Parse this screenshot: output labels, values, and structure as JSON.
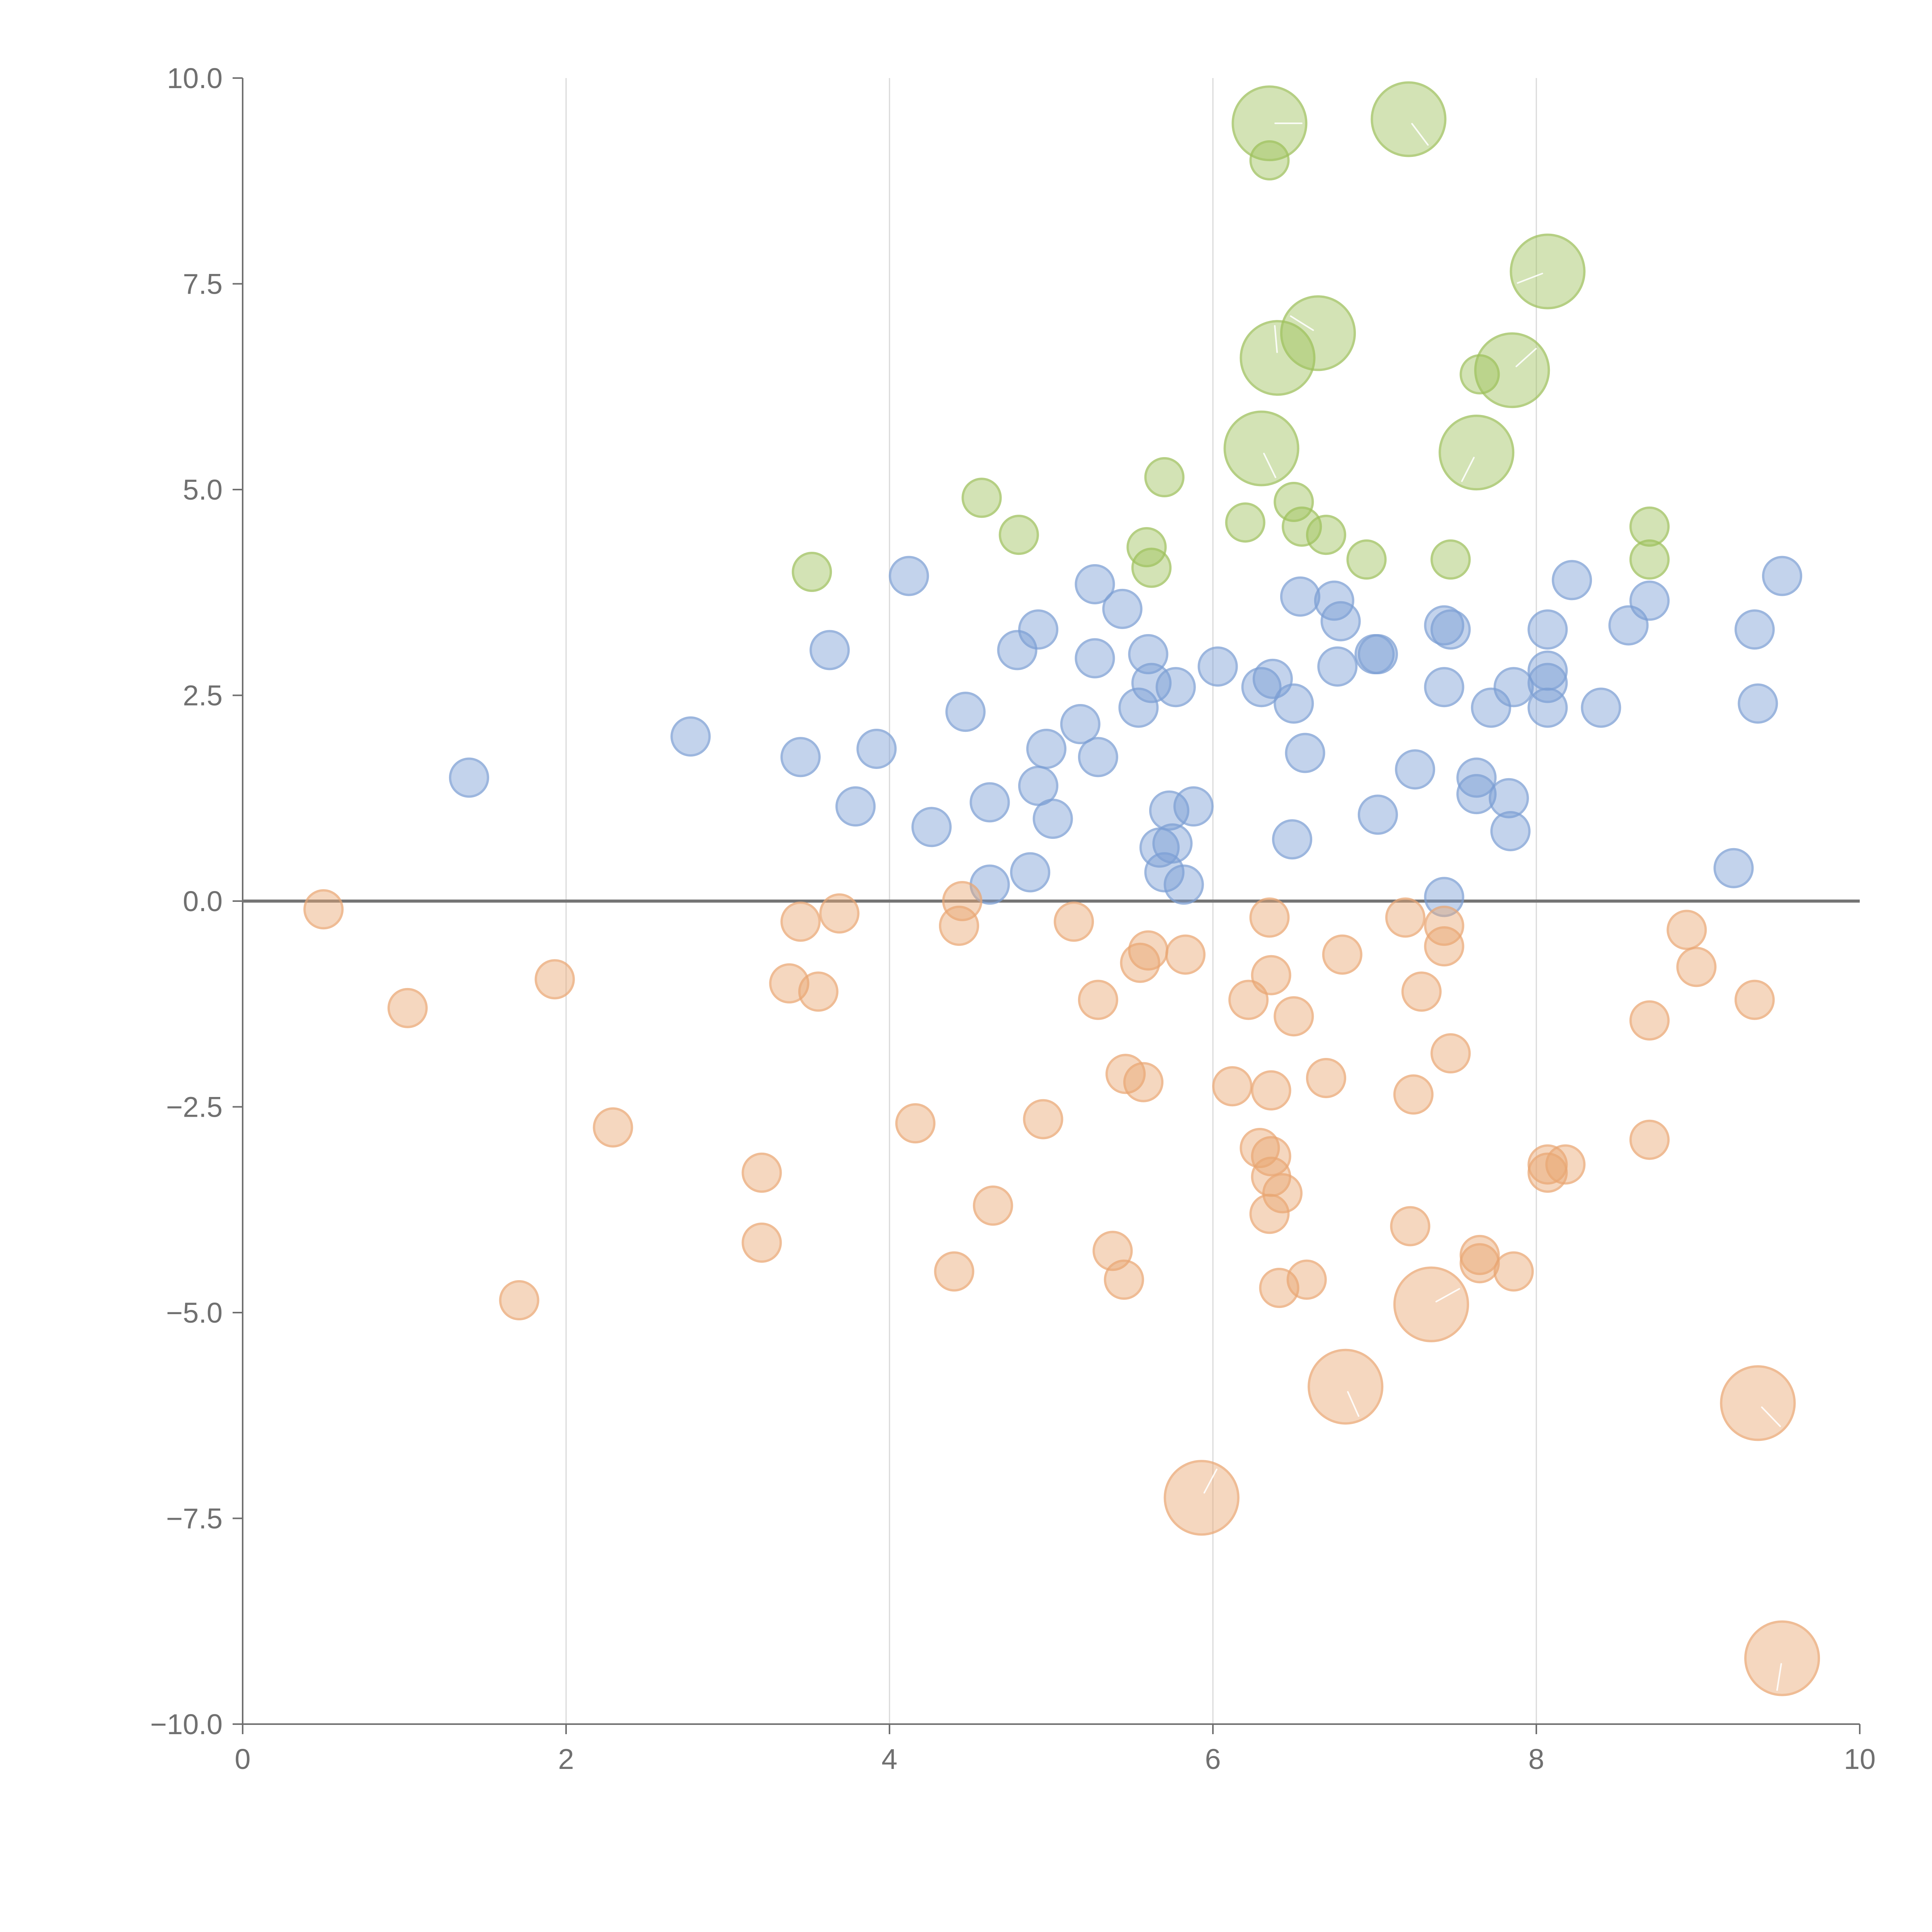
{
  "chart_data": {
    "type": "scatter",
    "title": "",
    "xlabel": "",
    "ylabel": "",
    "xlim": [
      0,
      10
    ],
    "ylim": [
      -10,
      10
    ],
    "grid": "vertical",
    "x_ticks": [
      0,
      2,
      4,
      6,
      8,
      10
    ],
    "x_tick_labels": [
      "0",
      "2",
      "4",
      "6",
      "8",
      "10"
    ],
    "y_ticks": [
      -10,
      -7.5,
      -5,
      -2.5,
      0,
      2.5,
      5,
      7.5,
      10
    ],
    "y_tick_labels": [
      "−10.0",
      "−7.5",
      "−5.0",
      "−2.5",
      "0.0",
      "2.5",
      "5.0",
      "7.5",
      "10.0"
    ],
    "series": [
      {
        "name": "green",
        "color": "#9dc05a",
        "points": [
          [
            6.35,
            9.45,
            3
          ],
          [
            7.21,
            9.5,
            3
          ],
          [
            6.35,
            9.0,
            1
          ],
          [
            8.07,
            7.65,
            3
          ],
          [
            6.65,
            6.9,
            3
          ],
          [
            6.4,
            6.6,
            3
          ],
          [
            7.85,
            6.45,
            3
          ],
          [
            7.65,
            6.4,
            1
          ],
          [
            6.3,
            5.5,
            3
          ],
          [
            7.63,
            5.45,
            3
          ],
          [
            5.7,
            5.15,
            1
          ],
          [
            4.57,
            4.9,
            1
          ],
          [
            6.5,
            4.85,
            1
          ],
          [
            4.8,
            4.45,
            1
          ],
          [
            6.55,
            4.55,
            1
          ],
          [
            6.2,
            4.6,
            1
          ],
          [
            6.7,
            4.45,
            1
          ],
          [
            8.7,
            4.55,
            1
          ],
          [
            5.59,
            4.3,
            1
          ],
          [
            6.95,
            4.15,
            1
          ],
          [
            7.47,
            4.15,
            1
          ],
          [
            8.7,
            4.15,
            1
          ],
          [
            5.62,
            4.05,
            1
          ],
          [
            3.52,
            4.0,
            1
          ]
        ]
      },
      {
        "name": "blue",
        "color": "#7b9ed4",
        "points": [
          [
            1.4,
            1.5,
            1
          ],
          [
            2.77,
            2.0,
            1
          ],
          [
            3.45,
            1.75,
            1
          ],
          [
            3.63,
            3.05,
            1
          ],
          [
            3.79,
            1.15,
            1
          ],
          [
            3.92,
            1.85,
            1
          ],
          [
            4.12,
            3.95,
            1
          ],
          [
            4.26,
            0.9,
            1
          ],
          [
            4.47,
            2.3,
            1
          ],
          [
            4.62,
            1.2,
            1
          ],
          [
            4.62,
            0.2,
            1
          ],
          [
            4.79,
            3.05,
            1
          ],
          [
            4.87,
            0.35,
            1
          ],
          [
            4.92,
            1.4,
            1
          ],
          [
            4.92,
            3.3,
            1
          ],
          [
            4.97,
            1.85,
            1
          ],
          [
            5.01,
            1.0,
            1
          ],
          [
            5.18,
            2.15,
            1
          ],
          [
            5.27,
            3.85,
            1
          ],
          [
            5.27,
            2.95,
            1
          ],
          [
            5.29,
            1.75,
            1
          ],
          [
            5.44,
            3.55,
            1
          ],
          [
            5.54,
            2.35,
            1
          ],
          [
            5.6,
            3.0,
            1
          ],
          [
            5.62,
            2.65,
            1
          ],
          [
            5.7,
            0.35,
            1
          ],
          [
            5.67,
            0.65,
            1
          ],
          [
            5.73,
            1.1,
            1
          ],
          [
            5.75,
            0.7,
            1
          ],
          [
            5.77,
            2.6,
            1
          ],
          [
            5.82,
            0.2,
            1
          ],
          [
            5.88,
            1.15,
            1
          ],
          [
            6.03,
            2.85,
            1
          ],
          [
            6.3,
            2.6,
            1
          ],
          [
            6.37,
            2.7,
            1
          ],
          [
            6.49,
            0.75,
            1
          ],
          [
            6.5,
            2.4,
            1
          ],
          [
            6.54,
            3.7,
            1
          ],
          [
            6.57,
            1.8,
            1
          ],
          [
            6.75,
            3.65,
            1
          ],
          [
            6.79,
            3.4,
            1
          ],
          [
            6.77,
            2.85,
            1
          ],
          [
            7.0,
            3.0,
            1
          ],
          [
            7.02,
            3.0,
            1
          ],
          [
            7.02,
            1.05,
            1
          ],
          [
            7.25,
            1.6,
            1
          ],
          [
            7.43,
            3.35,
            1
          ],
          [
            7.47,
            3.3,
            1
          ],
          [
            7.43,
            2.6,
            1
          ],
          [
            7.43,
            0.05,
            1
          ],
          [
            7.63,
            1.5,
            1
          ],
          [
            7.63,
            1.3,
            1
          ],
          [
            7.72,
            2.35,
            1
          ],
          [
            7.83,
            1.25,
            1
          ],
          [
            7.84,
            0.85,
            1
          ],
          [
            7.86,
            2.6,
            1
          ],
          [
            8.07,
            3.3,
            1
          ],
          [
            8.07,
            2.8,
            1
          ],
          [
            8.07,
            2.65,
            1
          ],
          [
            8.07,
            2.35,
            1
          ],
          [
            8.22,
            3.9,
            1
          ],
          [
            8.4,
            2.35,
            1
          ],
          [
            8.57,
            3.35,
            1
          ],
          [
            8.7,
            3.65,
            1
          ],
          [
            9.22,
            0.4,
            1
          ],
          [
            9.35,
            3.3,
            1
          ],
          [
            9.37,
            2.4,
            1
          ],
          [
            9.52,
            3.95,
            1
          ]
        ]
      },
      {
        "name": "orange",
        "color": "#e9a672",
        "points": [
          [
            0.5,
            -0.1,
            1
          ],
          [
            1.02,
            -1.3,
            1
          ],
          [
            1.71,
            -4.85,
            1
          ],
          [
            1.93,
            -0.95,
            1
          ],
          [
            2.29,
            -2.75,
            1
          ],
          [
            3.21,
            -3.3,
            1
          ],
          [
            3.21,
            -4.15,
            1
          ],
          [
            3.38,
            -1.0,
            1
          ],
          [
            3.45,
            -0.25,
            1
          ],
          [
            3.56,
            -1.1,
            1
          ],
          [
            3.69,
            -0.15,
            1
          ],
          [
            4.16,
            -2.7,
            1
          ],
          [
            4.4,
            -4.5,
            1
          ],
          [
            4.43,
            -0.3,
            1
          ],
          [
            4.45,
            0.0,
            1
          ],
          [
            4.64,
            -3.7,
            1
          ],
          [
            4.95,
            -2.65,
            1
          ],
          [
            5.14,
            -0.25,
            1
          ],
          [
            5.29,
            -1.2,
            1
          ],
          [
            5.38,
            -4.25,
            1
          ],
          [
            5.45,
            -4.6,
            1
          ],
          [
            5.46,
            -2.1,
            1
          ],
          [
            5.55,
            -0.75,
            1
          ],
          [
            5.6,
            -0.6,
            1
          ],
          [
            5.57,
            -2.2,
            1
          ],
          [
            5.83,
            -0.65,
            1
          ],
          [
            5.93,
            -7.25,
            3
          ],
          [
            6.12,
            -2.25,
            1
          ],
          [
            6.22,
            -1.2,
            1
          ],
          [
            6.29,
            -3.0,
            1
          ],
          [
            6.35,
            -0.2,
            1
          ],
          [
            6.36,
            -0.9,
            1
          ],
          [
            6.36,
            -2.3,
            1
          ],
          [
            6.36,
            -3.1,
            1
          ],
          [
            6.36,
            -3.35,
            1
          ],
          [
            6.35,
            -3.8,
            1
          ],
          [
            6.43,
            -3.55,
            1
          ],
          [
            6.41,
            -4.7,
            1
          ],
          [
            6.5,
            -1.4,
            1
          ],
          [
            6.58,
            -4.6,
            1
          ],
          [
            6.7,
            -2.15,
            1
          ],
          [
            6.8,
            -0.65,
            1
          ],
          [
            6.82,
            -5.9,
            3
          ],
          [
            7.19,
            -0.2,
            1
          ],
          [
            7.22,
            -3.95,
            1
          ],
          [
            7.24,
            -2.35,
            1
          ],
          [
            7.29,
            -1.1,
            1
          ],
          [
            7.35,
            -4.9,
            3
          ],
          [
            7.43,
            -0.3,
            1
          ],
          [
            7.43,
            -0.55,
            1
          ],
          [
            7.47,
            -1.85,
            1
          ],
          [
            7.65,
            -4.3,
            1
          ],
          [
            7.65,
            -4.4,
            1
          ],
          [
            7.86,
            -4.5,
            1
          ],
          [
            8.07,
            -3.2,
            1
          ],
          [
            8.07,
            -3.3,
            1
          ],
          [
            8.18,
            -3.2,
            1
          ],
          [
            8.7,
            -1.45,
            1
          ],
          [
            8.7,
            -2.9,
            1
          ],
          [
            8.93,
            -0.35,
            1
          ],
          [
            8.99,
            -0.8,
            1
          ],
          [
            9.35,
            -1.2,
            1
          ],
          [
            9.37,
            -6.1,
            3
          ],
          [
            9.52,
            -9.2,
            3
          ]
        ]
      }
    ]
  }
}
